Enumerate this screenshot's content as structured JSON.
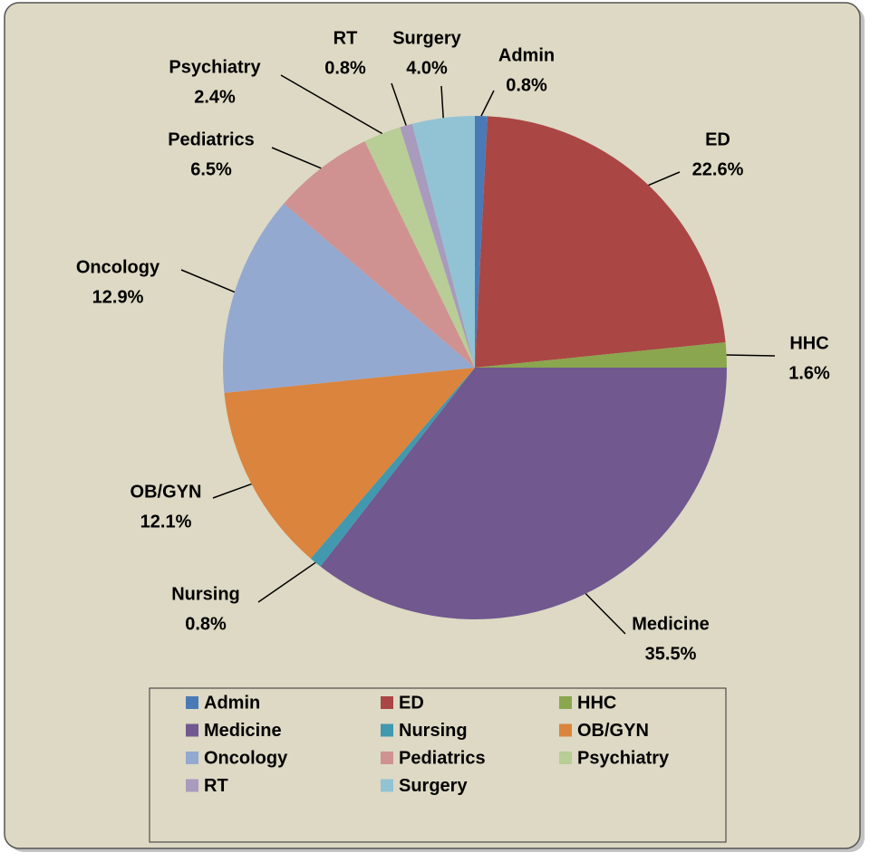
{
  "chart_data": {
    "type": "pie",
    "categories": [
      "Admin",
      "ED",
      "HHC",
      "Medicine",
      "Nursing",
      "OB/GYN",
      "Oncology",
      "Pediatrics",
      "Psychiatry",
      "RT",
      "Surgery"
    ],
    "values": [
      0.8,
      22.6,
      1.6,
      35.5,
      0.8,
      12.1,
      12.9,
      6.5,
      2.4,
      0.8,
      4.0
    ],
    "value_labels": [
      "0.8%",
      "22.6%",
      "1.6%",
      "35.5%",
      "0.8%",
      "12.1%",
      "12.9%",
      "6.5%",
      "2.4%",
      "0.8%",
      "4.0%"
    ],
    "colors": [
      "#4a7ab5",
      "#aa4644",
      "#8aa64f",
      "#71588f",
      "#4198af",
      "#db843d",
      "#93a9d0",
      "#d09291",
      "#b9cd96",
      "#a99bbd",
      "#92c3d4"
    ],
    "legend": "bottom"
  }
}
